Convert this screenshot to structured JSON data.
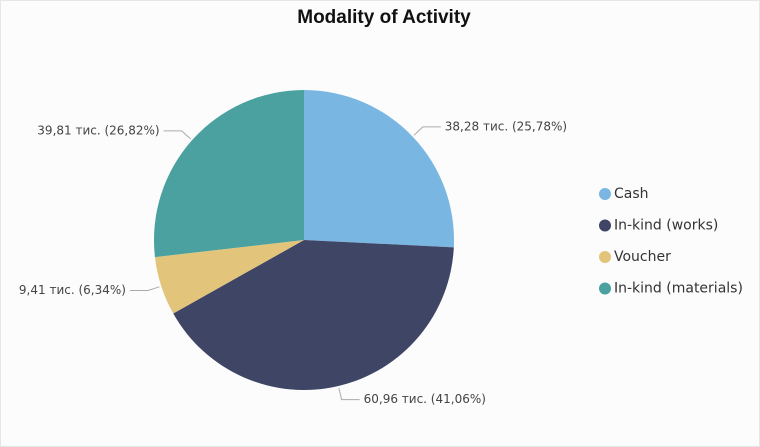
{
  "chart_data": {
    "type": "pie",
    "title": "Modality of Activity",
    "categories": [
      "Cash",
      "In-kind (works)",
      "Voucher",
      "In-kind (materials)"
    ],
    "values": [
      38.28,
      60.96,
      9.41,
      39.81
    ],
    "value_labels": [
      "38,28 тис. (25,78%)",
      "60,96 тис. (41,06%)",
      "9,41 тис. (6,34%)",
      "39,81 тис. (26,82%)"
    ],
    "colors": [
      "#7ab6e2",
      "#3e4565",
      "#e2c47a",
      "#4aa1a0"
    ],
    "legend": "right"
  }
}
